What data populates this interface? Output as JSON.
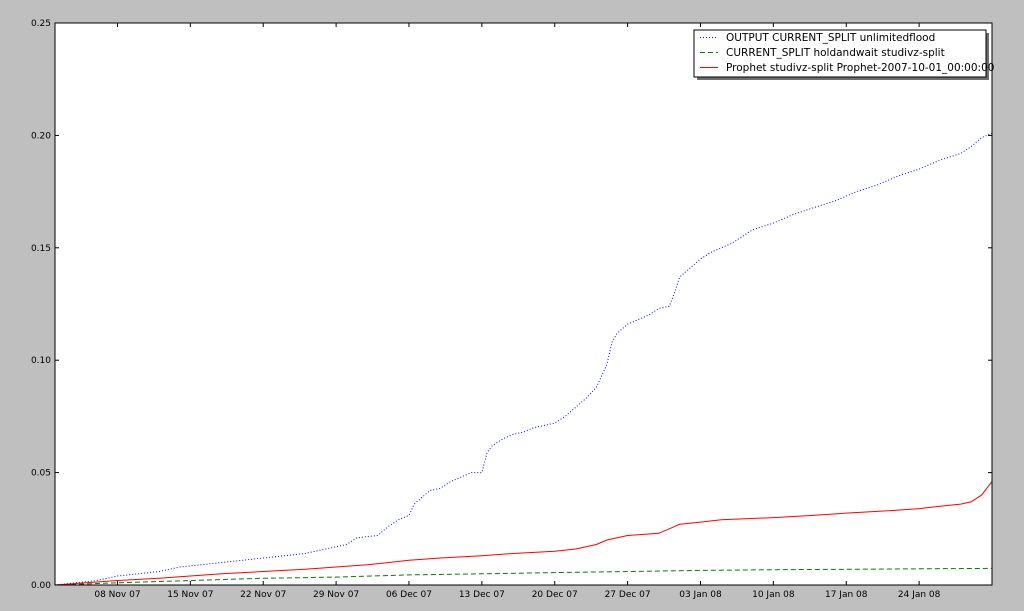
{
  "chart_data": {
    "type": "line",
    "title": "",
    "xlabel": "",
    "ylabel": "",
    "xlim": [
      "2007-11-02 00:00",
      "2008-01-31 00:00"
    ],
    "ylim": [
      0,
      0.25
    ],
    "yticks": [
      "0.00",
      "0.05",
      "0.10",
      "0.15",
      "0.20",
      "0.25"
    ],
    "xticks": [
      {
        "date": "2007-11-08",
        "label": "08 Nov 07"
      },
      {
        "date": "2007-11-15",
        "label": "15 Nov 07"
      },
      {
        "date": "2007-11-22",
        "label": "22 Nov 07"
      },
      {
        "date": "2007-11-29",
        "label": "29 Nov 07"
      },
      {
        "date": "2007-12-06",
        "label": "06 Dec 07"
      },
      {
        "date": "2007-12-13",
        "label": "13 Dec 07"
      },
      {
        "date": "2007-12-20",
        "label": "20 Dec 07"
      },
      {
        "date": "2007-12-27",
        "label": "27 Dec 07"
      },
      {
        "date": "2008-01-03",
        "label": "03 Jan 08"
      },
      {
        "date": "2008-01-10",
        "label": "10 Jan 08"
      },
      {
        "date": "2008-01-17",
        "label": "17 Jan 08"
      },
      {
        "date": "2008-01-24",
        "label": "24 Jan 08"
      }
    ],
    "grid": false,
    "legend_position": "top-right",
    "series": [
      {
        "name": "OUTPUT CURRENT_SPLIT unlimitedflood",
        "color": "#0000ff",
        "style": "dotted",
        "points": [
          [
            "2007-11-02",
            0.0
          ],
          [
            "2007-11-04",
            0.001
          ],
          [
            "2007-11-06",
            0.002
          ],
          [
            "2007-11-07",
            0.003
          ],
          [
            "2007-11-08",
            0.004
          ],
          [
            "2007-11-10",
            0.005
          ],
          [
            "2007-11-12",
            0.006
          ],
          [
            "2007-11-14",
            0.008
          ],
          [
            "2007-11-16",
            0.009
          ],
          [
            "2007-11-18",
            0.01
          ],
          [
            "2007-11-20",
            0.011
          ],
          [
            "2007-11-22",
            0.012
          ],
          [
            "2007-11-24",
            0.013
          ],
          [
            "2007-11-26",
            0.014
          ],
          [
            "2007-11-28",
            0.016
          ],
          [
            "2007-11-30",
            0.018
          ],
          [
            "2007-12-01",
            0.021
          ],
          [
            "2007-12-03",
            0.022
          ],
          [
            "2007-12-04",
            0.026
          ],
          [
            "2007-12-05",
            0.029
          ],
          [
            "2007-12-06",
            0.031
          ],
          [
            "2007-12-06 12:00",
            0.036
          ],
          [
            "2007-12-07",
            0.038
          ],
          [
            "2007-12-08",
            0.042
          ],
          [
            "2007-12-09",
            0.043
          ],
          [
            "2007-12-10",
            0.046
          ],
          [
            "2007-12-11",
            0.048
          ],
          [
            "2007-12-12",
            0.05
          ],
          [
            "2007-12-13",
            0.05
          ],
          [
            "2007-12-13 12:00",
            0.059
          ],
          [
            "2007-12-14",
            0.062
          ],
          [
            "2007-12-15",
            0.065
          ],
          [
            "2007-12-16",
            0.067
          ],
          [
            "2007-12-17",
            0.068
          ],
          [
            "2007-12-18",
            0.07
          ],
          [
            "2007-12-19",
            0.071
          ],
          [
            "2007-12-20",
            0.072
          ],
          [
            "2007-12-21",
            0.075
          ],
          [
            "2007-12-22",
            0.079
          ],
          [
            "2007-12-23",
            0.083
          ],
          [
            "2007-12-24",
            0.088
          ],
          [
            "2007-12-24 12:00",
            0.093
          ],
          [
            "2007-12-25",
            0.098
          ],
          [
            "2007-12-25 12:00",
            0.108
          ],
          [
            "2007-12-26",
            0.112
          ],
          [
            "2007-12-27",
            0.116
          ],
          [
            "2007-12-28",
            0.118
          ],
          [
            "2007-12-29",
            0.12
          ],
          [
            "2007-12-30",
            0.123
          ],
          [
            "2007-12-31",
            0.124
          ],
          [
            "2007-12-31 12:00",
            0.13
          ],
          [
            "2008-01-01",
            0.137
          ],
          [
            "2008-01-02",
            0.141
          ],
          [
            "2008-01-03",
            0.145
          ],
          [
            "2008-01-04",
            0.148
          ],
          [
            "2008-01-05",
            0.15
          ],
          [
            "2008-01-06",
            0.152
          ],
          [
            "2008-01-07",
            0.155
          ],
          [
            "2008-01-08",
            0.158
          ],
          [
            "2008-01-10",
            0.161
          ],
          [
            "2008-01-12",
            0.165
          ],
          [
            "2008-01-14",
            0.168
          ],
          [
            "2008-01-16",
            0.171
          ],
          [
            "2008-01-18",
            0.175
          ],
          [
            "2008-01-20",
            0.178
          ],
          [
            "2008-01-22",
            0.182
          ],
          [
            "2008-01-24",
            0.185
          ],
          [
            "2008-01-26",
            0.189
          ],
          [
            "2008-01-28",
            0.192
          ],
          [
            "2008-01-29",
            0.195
          ],
          [
            "2008-01-30",
            0.199
          ],
          [
            "2008-01-31",
            0.201
          ]
        ]
      },
      {
        "name": "CURRENT_SPLIT holdandwait studivz-split",
        "color": "#008000",
        "style": "dashed",
        "points": [
          [
            "2007-11-02",
            0.0
          ],
          [
            "2007-11-08",
            0.001
          ],
          [
            "2007-11-15",
            0.002
          ],
          [
            "2007-11-22",
            0.003
          ],
          [
            "2007-11-29",
            0.0035
          ],
          [
            "2007-12-06",
            0.0045
          ],
          [
            "2007-12-13",
            0.005
          ],
          [
            "2007-12-20",
            0.0055
          ],
          [
            "2007-12-27",
            0.006
          ],
          [
            "2008-01-03",
            0.0065
          ],
          [
            "2008-01-10",
            0.0068
          ],
          [
            "2008-01-17",
            0.007
          ],
          [
            "2008-01-24",
            0.0072
          ],
          [
            "2008-01-31",
            0.0074
          ]
        ]
      },
      {
        "name": "Prophet studivz-split Prophet-2007-10-01_00:00:00",
        "color": "#ff0000",
        "style": "solid",
        "points": [
          [
            "2007-11-02",
            0.0
          ],
          [
            "2007-11-05",
            0.001
          ],
          [
            "2007-11-08",
            0.002
          ],
          [
            "2007-11-12",
            0.003
          ],
          [
            "2007-11-15",
            0.004
          ],
          [
            "2007-11-18",
            0.005
          ],
          [
            "2007-11-22",
            0.006
          ],
          [
            "2007-11-26",
            0.007
          ],
          [
            "2007-11-29",
            0.008
          ],
          [
            "2007-12-02",
            0.009
          ],
          [
            "2007-12-06",
            0.011
          ],
          [
            "2007-12-09",
            0.012
          ],
          [
            "2007-12-13",
            0.013
          ],
          [
            "2007-12-16",
            0.014
          ],
          [
            "2007-12-20",
            0.015
          ],
          [
            "2007-12-22",
            0.016
          ],
          [
            "2007-12-24",
            0.018
          ],
          [
            "2007-12-25",
            0.02
          ],
          [
            "2007-12-27",
            0.022
          ],
          [
            "2007-12-30",
            0.023
          ],
          [
            "2007-12-31",
            0.025
          ],
          [
            "2008-01-01",
            0.027
          ],
          [
            "2008-01-03",
            0.028
          ],
          [
            "2008-01-05",
            0.029
          ],
          [
            "2008-01-10",
            0.03
          ],
          [
            "2008-01-14",
            0.031
          ],
          [
            "2008-01-17",
            0.032
          ],
          [
            "2008-01-21",
            0.033
          ],
          [
            "2008-01-24",
            0.034
          ],
          [
            "2008-01-26",
            0.035
          ],
          [
            "2008-01-28",
            0.036
          ],
          [
            "2008-01-29",
            0.037
          ],
          [
            "2008-01-30",
            0.04
          ],
          [
            "2008-01-31",
            0.046
          ]
        ]
      }
    ]
  }
}
